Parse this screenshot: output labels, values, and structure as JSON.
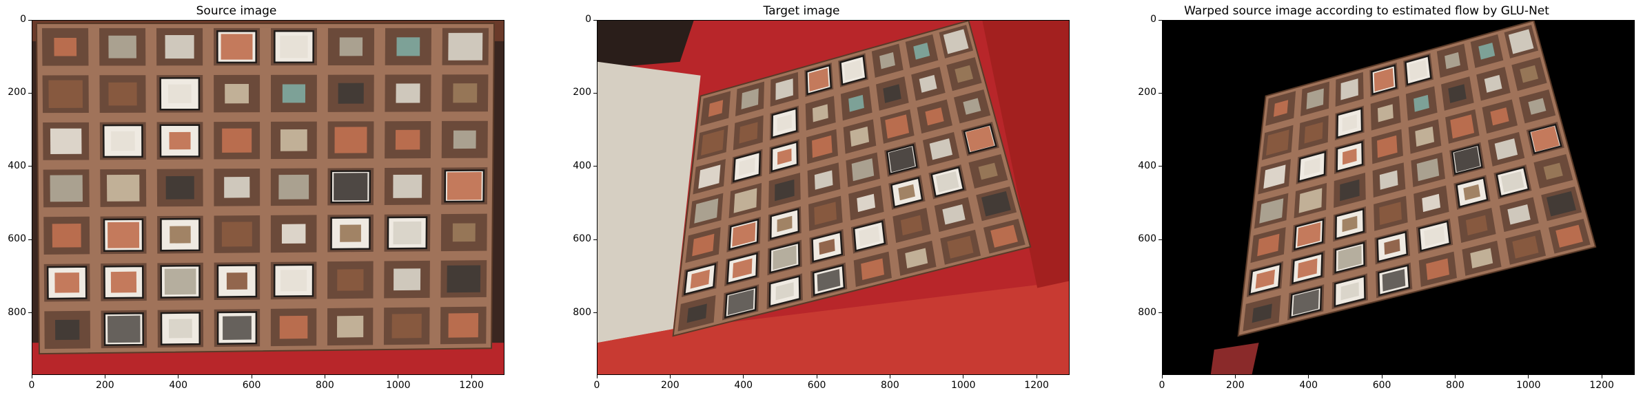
{
  "figure": {
    "panels": [
      {
        "title": "Source image",
        "x_ticks": [
          "0",
          "200",
          "400",
          "600",
          "800",
          "1000",
          "1200"
        ],
        "y_ticks": [
          "0",
          "200",
          "400",
          "600",
          "800"
        ],
        "x_max": 1290,
        "y_max": 970
      },
      {
        "title": "Target image",
        "x_ticks": [
          "0",
          "200",
          "400",
          "600",
          "800",
          "1000",
          "1200"
        ],
        "y_ticks": [
          "0",
          "200",
          "400",
          "600",
          "800"
        ],
        "x_max": 1290,
        "y_max": 970
      },
      {
        "title": "Warped source image according to estimated flow by GLU-Net",
        "x_ticks": [
          "0",
          "200",
          "400",
          "600",
          "800",
          "1000",
          "1200"
        ],
        "y_ticks": [
          "0",
          "200",
          "400",
          "600",
          "800"
        ],
        "x_max": 1290,
        "y_max": 970
      }
    ],
    "colors": {
      "tray_wood": "#a0735a",
      "compartment": "#6b4a3a",
      "background_red": "#b8262a",
      "warp_void": "#000000"
    }
  }
}
